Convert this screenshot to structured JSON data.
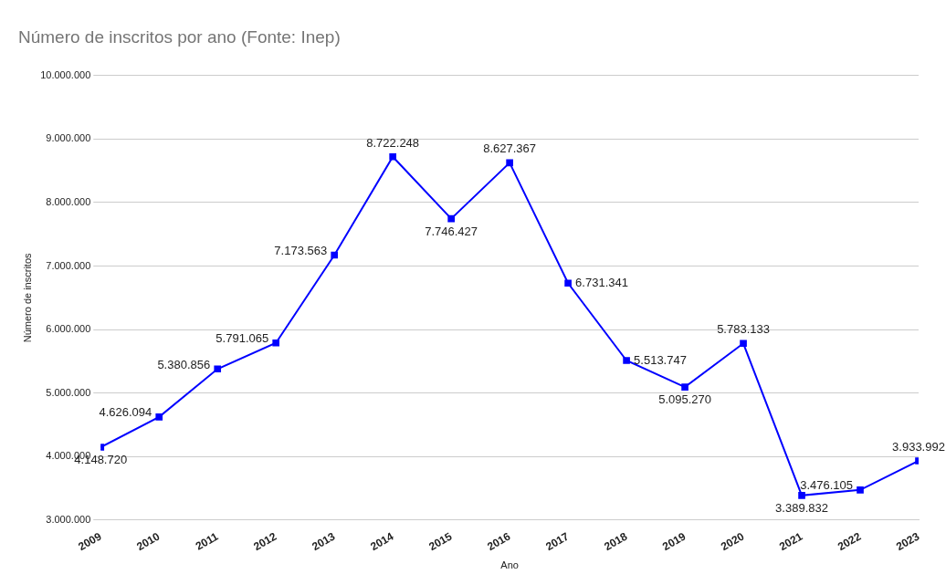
{
  "chart_data": {
    "type": "line",
    "title": "Número de inscritos por ano (Fonte: Inep)",
    "x_label": "Ano",
    "y_label": "Número de inscritos",
    "categories": [
      "2009",
      "2010",
      "2011",
      "2012",
      "2013",
      "2014",
      "2015",
      "2016",
      "2017",
      "2018",
      "2019",
      "2020",
      "2021",
      "2022",
      "2023"
    ],
    "values": [
      4148720,
      4626094,
      5380856,
      5791065,
      7173563,
      8722248,
      7746427,
      8627367,
      6731341,
      5513747,
      5095270,
      5783133,
      3389832,
      3476105,
      3933992
    ],
    "value_labels": [
      "4.148.720",
      "4.626.094",
      "5.380.856",
      "5.791.065",
      "7.173.563",
      "8.722.248",
      "7.746.427",
      "8.627.367",
      "6.731.341",
      "5.513.747",
      "5.095.270",
      "5.783.133",
      "3.389.832",
      "3.476.105",
      "3.933.992"
    ],
    "color": "#0000ff",
    "marker": "square",
    "data_labels": true,
    "grid": true,
    "ylim": [
      3000000,
      10000000
    ],
    "yticks": [
      {
        "value": 3000000,
        "label": "3.000.000"
      },
      {
        "value": 4000000,
        "label": "4.000.000"
      },
      {
        "value": 5000000,
        "label": "5.000.000"
      },
      {
        "value": 6000000,
        "label": "6.000.000"
      },
      {
        "value": 7000000,
        "label": "7.000.000"
      },
      {
        "value": 8000000,
        "label": "8.000.000"
      },
      {
        "value": 9000000,
        "label": "9.000.000"
      },
      {
        "value": 10000000,
        "label": "10.000.000"
      }
    ]
  }
}
